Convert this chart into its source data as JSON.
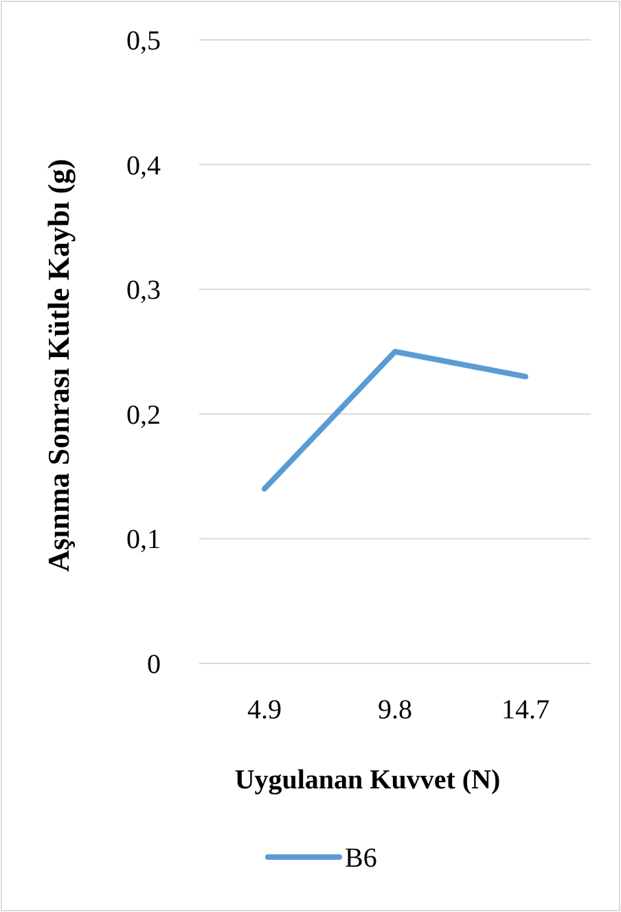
{
  "chart_data": {
    "type": "line",
    "xlabel": "Uygulanan Kuvvet (N)",
    "ylabel": "Aşınma Sonrası Kütle Kaybı (g)",
    "categories": [
      "4.9",
      "9.8",
      "14.7"
    ],
    "series": [
      {
        "name": "B6",
        "color": "#5b9bd5",
        "values": [
          0.14,
          0.25,
          0.23
        ]
      }
    ],
    "ylim": [
      0,
      0.5
    ],
    "yticks": [
      {
        "value": 0,
        "label": "0"
      },
      {
        "value": 0.1,
        "label": "0,1"
      },
      {
        "value": 0.2,
        "label": "0,2"
      },
      {
        "value": 0.3,
        "label": "0,3"
      },
      {
        "value": 0.4,
        "label": "0,4"
      },
      {
        "value": 0.5,
        "label": "0,5"
      }
    ],
    "grid": "y",
    "legend": "bottom",
    "marker": "none",
    "line_style": "solid"
  }
}
